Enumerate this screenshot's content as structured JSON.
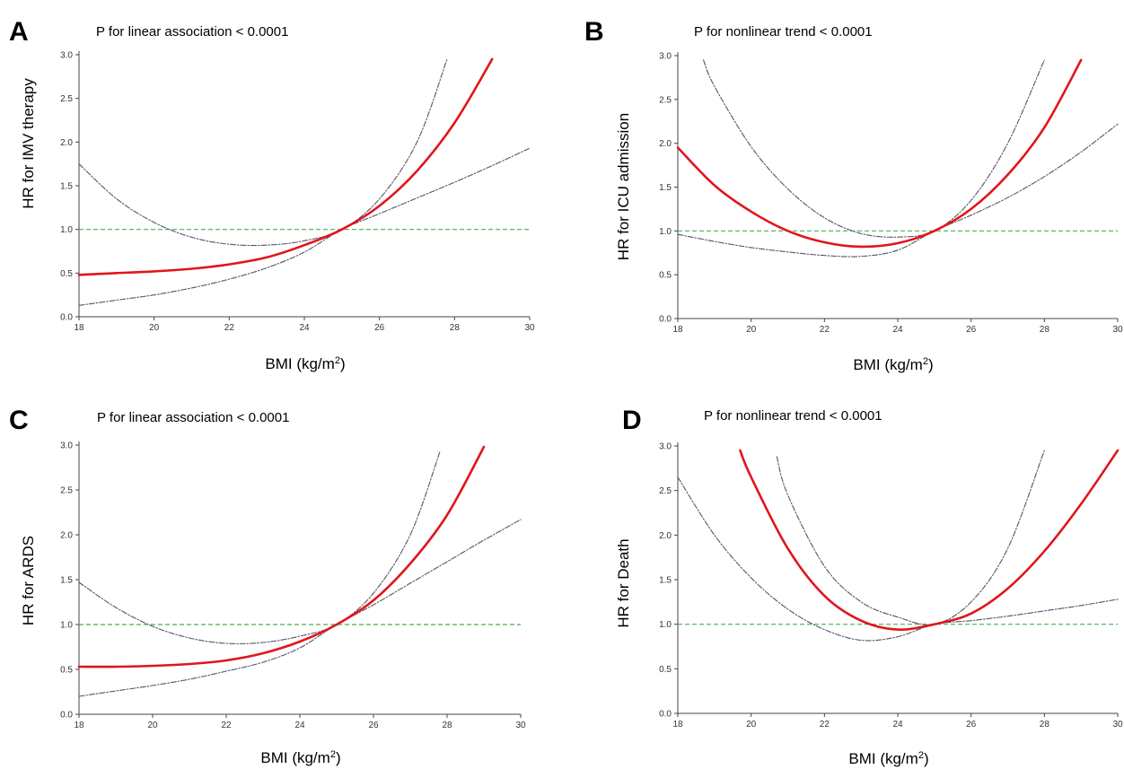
{
  "figure": {
    "panels": [
      {
        "letter": "A",
        "pvalue": "P for linear association < 0.0001",
        "ylabel": "HR for IMV therapy",
        "xlabel": "BMI (kg/m",
        "xlabel_sup": "2",
        "xlabel_end": ")"
      },
      {
        "letter": "B",
        "pvalue": "P for nonlinear trend < 0.0001",
        "ylabel": "HR for ICU admission",
        "xlabel": "BMI (kg/m",
        "xlabel_sup": "2",
        "xlabel_end": ")"
      },
      {
        "letter": "C",
        "pvalue": "P for linear association < 0.0001",
        "ylabel": "HR for ARDS",
        "xlabel": "BMI (kg/m",
        "xlabel_sup": "2",
        "xlabel_end": ")"
      },
      {
        "letter": "D",
        "pvalue": "P for nonlinear trend < 0.0001",
        "ylabel": "HR for Death",
        "xlabel": "BMI (kg/m",
        "xlabel_sup": "2",
        "xlabel_end": ")"
      }
    ]
  },
  "colors": {
    "estimate": "#e0161b",
    "ci": "#555566",
    "reference": "#4caf50"
  },
  "chart_data": [
    {
      "type": "line",
      "xlim": [
        18,
        30
      ],
      "ylim": [
        0,
        3
      ],
      "x_ticks": [
        "18",
        "20",
        "22",
        "24",
        "26",
        "28",
        "30"
      ],
      "y_ticks": [
        "0.0",
        "0.5",
        "1.0",
        "1.5",
        "2.0",
        "2.5",
        "3.0"
      ],
      "reference_line": 1.0,
      "series": [
        {
          "role": "estimate",
          "x": [
            18,
            19,
            20,
            21,
            22,
            23,
            24,
            25,
            26,
            27,
            28,
            29
          ],
          "y": [
            0.48,
            0.5,
            0.52,
            0.55,
            0.6,
            0.68,
            0.82,
            1.0,
            1.27,
            1.67,
            2.22,
            2.95
          ]
        },
        {
          "role": "upper-ci",
          "x": [
            18,
            19,
            20,
            21,
            22,
            23,
            24,
            25,
            26,
            27,
            27.8
          ],
          "y": [
            1.75,
            1.35,
            1.08,
            0.91,
            0.83,
            0.82,
            0.87,
            1.0,
            1.35,
            2.0,
            2.95
          ]
        },
        {
          "role": "lower-ci",
          "x": [
            18,
            19,
            20,
            21,
            22,
            23,
            24,
            25,
            26,
            27,
            28,
            29,
            30
          ],
          "y": [
            0.13,
            0.19,
            0.25,
            0.33,
            0.43,
            0.56,
            0.74,
            1.0,
            1.18,
            1.36,
            1.54,
            1.73,
            1.93
          ]
        }
      ]
    },
    {
      "type": "line",
      "xlim": [
        18,
        30
      ],
      "ylim": [
        0,
        3
      ],
      "x_ticks": [
        "18",
        "20",
        "22",
        "24",
        "26",
        "28",
        "30"
      ],
      "y_ticks": [
        "0.0",
        "0.5",
        "1.0",
        "1.5",
        "2.0",
        "2.5",
        "3.0"
      ],
      "reference_line": 1.0,
      "series": [
        {
          "role": "estimate",
          "x": [
            18,
            19,
            20,
            21,
            22,
            23,
            24,
            25,
            26,
            27,
            28,
            29
          ],
          "y": [
            1.95,
            1.52,
            1.22,
            1.0,
            0.87,
            0.82,
            0.86,
            1.0,
            1.25,
            1.64,
            2.18,
            2.95
          ]
        },
        {
          "role": "upper-ci",
          "x": [
            18.7,
            19,
            20,
            21,
            22,
            23,
            24,
            25,
            26,
            27,
            28
          ],
          "y": [
            2.95,
            2.65,
            1.96,
            1.48,
            1.15,
            0.97,
            0.93,
            1.0,
            1.35,
            2.0,
            2.95
          ]
        },
        {
          "role": "lower-ci",
          "x": [
            18,
            19,
            20,
            21,
            22,
            23,
            24,
            25,
            26,
            27,
            28,
            29,
            30
          ],
          "y": [
            0.96,
            0.88,
            0.81,
            0.76,
            0.72,
            0.71,
            0.78,
            1.0,
            1.18,
            1.38,
            1.62,
            1.9,
            2.22
          ]
        }
      ]
    },
    {
      "type": "line",
      "xlim": [
        18,
        30
      ],
      "ylim": [
        0,
        3
      ],
      "x_ticks": [
        "18",
        "20",
        "22",
        "24",
        "26",
        "28",
        "30"
      ],
      "y_ticks": [
        "0.0",
        "0.5",
        "1.0",
        "1.5",
        "2.0",
        "2.5",
        "3.0"
      ],
      "reference_line": 1.0,
      "series": [
        {
          "role": "estimate",
          "x": [
            18,
            19,
            20,
            21,
            22,
            23,
            24,
            25,
            26,
            27,
            28,
            29
          ],
          "y": [
            0.53,
            0.53,
            0.54,
            0.56,
            0.6,
            0.68,
            0.81,
            1.0,
            1.27,
            1.68,
            2.22,
            2.98
          ]
        },
        {
          "role": "upper-ci",
          "x": [
            18,
            19,
            20,
            21,
            22,
            23,
            24,
            25,
            26,
            27,
            27.8
          ],
          "y": [
            1.47,
            1.19,
            0.98,
            0.85,
            0.79,
            0.8,
            0.87,
            1.0,
            1.35,
            2.0,
            2.92
          ]
        },
        {
          "role": "lower-ci",
          "x": [
            18,
            19,
            20,
            21,
            22,
            23,
            24,
            25,
            26,
            27,
            28,
            29,
            30
          ],
          "y": [
            0.2,
            0.26,
            0.32,
            0.39,
            0.48,
            0.58,
            0.74,
            1.0,
            1.22,
            1.46,
            1.7,
            1.94,
            2.17
          ]
        }
      ]
    },
    {
      "type": "line",
      "xlim": [
        18,
        30
      ],
      "ylim": [
        0,
        3
      ],
      "x_ticks": [
        "18",
        "20",
        "22",
        "24",
        "26",
        "28",
        "30"
      ],
      "y_ticks": [
        "0.0",
        "0.5",
        "1.0",
        "1.5",
        "2.0",
        "2.5",
        "3.0"
      ],
      "reference_line": 1.0,
      "series": [
        {
          "role": "estimate",
          "x": [
            19.7,
            20,
            21,
            22,
            23,
            24,
            25,
            26,
            27,
            28,
            29,
            30
          ],
          "y": [
            2.95,
            2.65,
            1.85,
            1.32,
            1.04,
            0.94,
            1.0,
            1.12,
            1.4,
            1.82,
            2.35,
            2.95
          ]
        },
        {
          "role": "upper-ci",
          "x": [
            20.7,
            21,
            22,
            23,
            24,
            25,
            26,
            27,
            28
          ],
          "y": [
            2.88,
            2.45,
            1.65,
            1.25,
            1.08,
            1.0,
            1.25,
            1.85,
            2.95
          ]
        },
        {
          "role": "lower-ci",
          "x": [
            18,
            19,
            20,
            21,
            22,
            23,
            24,
            25,
            26,
            27,
            28,
            29,
            30
          ],
          "y": [
            2.65,
            2.0,
            1.52,
            1.17,
            0.94,
            0.82,
            0.86,
            1.0,
            1.04,
            1.09,
            1.15,
            1.21,
            1.28
          ]
        }
      ]
    }
  ]
}
